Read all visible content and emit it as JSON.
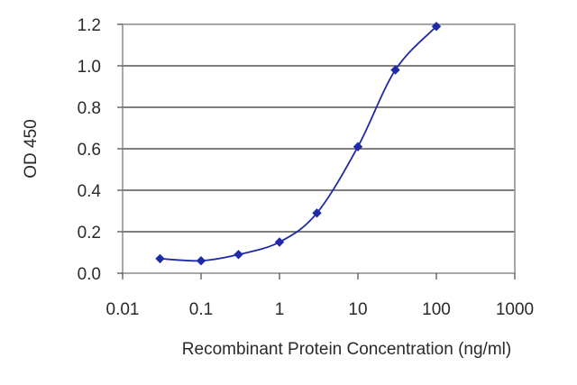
{
  "chart_data": {
    "type": "line",
    "xlabel": "Recombinant Protein Concentration (ng/ml)",
    "ylabel": "OD 450",
    "xscale": "log",
    "xlim": [
      0.01,
      1000
    ],
    "ylim": [
      0.0,
      1.2
    ],
    "xticks": [
      0.01,
      0.1,
      1,
      10,
      100,
      1000
    ],
    "xtick_labels": [
      "0.01",
      "0.1",
      "1",
      "10",
      "100",
      "1000"
    ],
    "yticks": [
      0.0,
      0.2,
      0.4,
      0.6,
      0.8,
      1.0,
      1.2
    ],
    "ytick_labels": [
      "0.0",
      "0.2",
      "0.4",
      "0.6",
      "0.8",
      "1.0",
      "1.2"
    ],
    "grid": "horizontal",
    "legend": "none",
    "series": [
      {
        "color": "#1f2aa6",
        "marker": "diamond",
        "x": [
          0.03,
          0.1,
          0.3,
          1,
          3,
          10,
          30,
          100
        ],
        "y": [
          0.07,
          0.06,
          0.09,
          0.15,
          0.29,
          0.61,
          0.98,
          1.19
        ]
      }
    ]
  }
}
